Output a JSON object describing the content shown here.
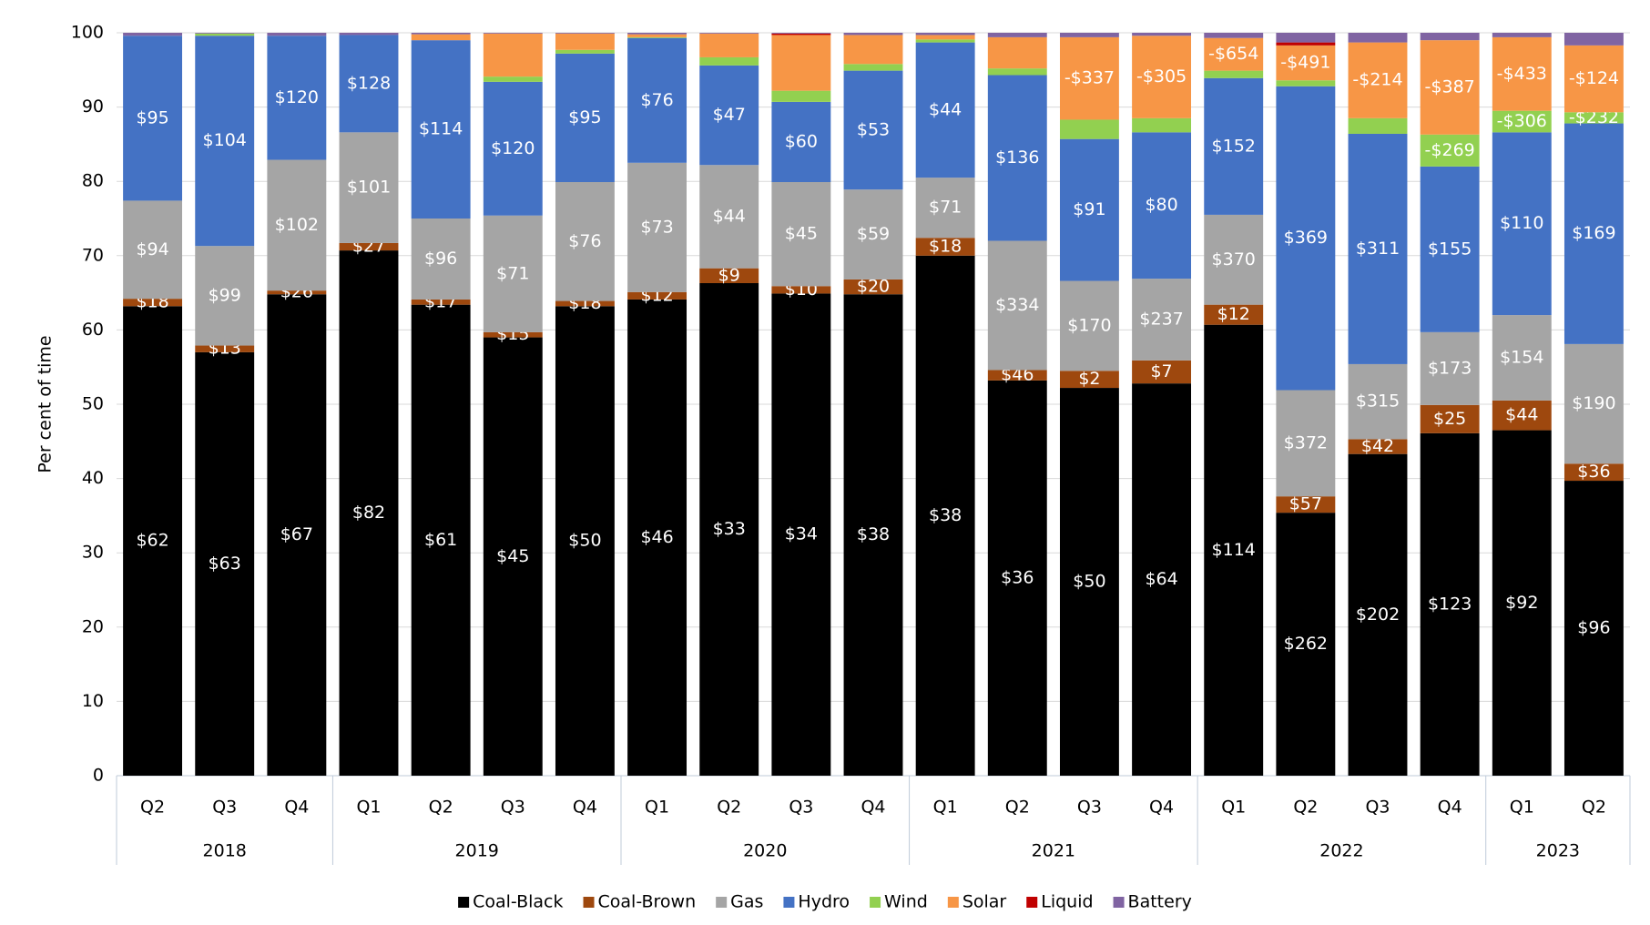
{
  "chart_data": {
    "type": "stacked_bar",
    "y_label": "Per cent of time",
    "categories": [
      "Q2",
      "Q3",
      "Q4",
      "Q1",
      "Q2",
      "Q3",
      "Q4",
      "Q1",
      "Q2",
      "Q3",
      "Q4",
      "Q1",
      "Q2",
      "Q3",
      "Q4",
      "Q1",
      "Q2",
      "Q3",
      "Q4",
      "Q1",
      "Q2"
    ],
    "years": [
      "2018",
      null,
      null,
      "2019",
      null,
      null,
      null,
      "2020",
      null,
      null,
      null,
      "2021",
      null,
      null,
      null,
      "2022",
      null,
      null,
      null,
      "2023",
      null
    ],
    "ylim": [
      0,
      100
    ],
    "yticks": [
      0,
      10,
      20,
      30,
      40,
      50,
      60,
      70,
      80,
      90,
      100
    ],
    "grid": true,
    "legend": "bottom",
    "series": [
      {
        "name": "Coal-Black",
        "color": "#000000",
        "values": [
          63.2,
          57.0,
          64.8,
          70.7,
          63.4,
          59.0,
          63.2,
          64.1,
          66.3,
          64.9,
          64.8,
          70.0,
          53.2,
          52.2,
          52.8,
          60.7,
          35.4,
          43.3,
          46.1,
          46.5,
          39.7
        ],
        "labels": [
          "$62",
          "$63",
          "$67",
          "$82",
          "$61",
          "$45",
          "$50",
          "$46",
          "$33",
          "$34",
          "$38",
          "$38",
          "$36",
          "$50",
          "$64",
          "$114",
          "$262",
          "$202",
          "$123",
          "$92",
          "$96"
        ]
      },
      {
        "name": "Coal-Brown",
        "color": "#9e480e",
        "values": [
          1.0,
          0.9,
          0.5,
          1.0,
          0.7,
          0.7,
          0.7,
          1.0,
          2.0,
          1.0,
          2.0,
          2.4,
          1.4,
          2.3,
          3.1,
          2.7,
          2.2,
          2.0,
          3.8,
          4.0,
          2.3
        ],
        "labels": [
          "$18",
          "$13",
          "$26",
          "$27",
          "$17",
          "$15",
          "$18",
          "$12",
          "$9",
          "$10",
          "$20",
          "$18",
          "$46",
          "$2",
          "$7",
          "$12",
          "$57",
          "$42",
          "$25",
          "$44",
          "$36"
        ]
      },
      {
        "name": "Gas",
        "color": "#a5a5a5",
        "values": [
          13.2,
          13.4,
          17.6,
          14.9,
          10.9,
          15.7,
          16.0,
          17.4,
          13.9,
          14.0,
          12.1,
          8.1,
          17.4,
          12.1,
          11.0,
          12.1,
          14.3,
          10.1,
          9.8,
          11.5,
          16.1
        ],
        "labels": [
          "$94",
          "$99",
          "$102",
          "$101",
          "$96",
          "$71",
          "$76",
          "$73",
          "$44",
          "$45",
          "$59",
          "$71",
          "$334",
          "$170",
          "$237",
          "$370",
          "$372",
          "$315",
          "$173",
          "$154",
          "$190"
        ]
      },
      {
        "name": "Hydro",
        "color": "#4472c4",
        "values": [
          22.2,
          28.3,
          16.7,
          13.1,
          24.0,
          18.0,
          17.3,
          16.8,
          13.4,
          10.8,
          16.0,
          18.2,
          22.3,
          19.1,
          19.7,
          18.4,
          40.9,
          31.0,
          22.3,
          24.6,
          29.7
        ],
        "labels": [
          "$95",
          "$104",
          "$120",
          "$128",
          "$114",
          "$120",
          "$95",
          "$76",
          "$47",
          "$60",
          "$53",
          "$44",
          "$136",
          "$91",
          "$80",
          "$152",
          "$369",
          "$311",
          "$155",
          "$110",
          "$169"
        ]
      },
      {
        "name": "Wind",
        "color": "#92d050",
        "values": [
          0,
          0.3,
          0,
          0,
          0,
          0.7,
          0.5,
          0.1,
          1.1,
          1.5,
          0.9,
          0.4,
          0.9,
          2.6,
          1.9,
          1.0,
          0.8,
          2.1,
          4.3,
          2.9,
          1.5
        ],
        "labels": [
          null,
          null,
          null,
          null,
          null,
          null,
          null,
          null,
          null,
          null,
          null,
          null,
          null,
          null,
          null,
          null,
          null,
          null,
          "-$269",
          "-$306",
          "-$232"
        ]
      },
      {
        "name": "Solar",
        "color": "#f79646",
        "values": [
          0,
          0,
          0,
          0,
          0.8,
          5.8,
          2.2,
          0.4,
          3.2,
          7.5,
          3.9,
          0.6,
          4.2,
          11.1,
          11.1,
          4.4,
          4.7,
          10.2,
          12.7,
          9.9,
          9.0
        ],
        "labels": [
          null,
          null,
          null,
          null,
          null,
          null,
          null,
          null,
          null,
          null,
          null,
          null,
          null,
          "-$337",
          "-$305",
          "-$654",
          "-$491",
          "-$214",
          "-$387",
          "-$433",
          "-$124"
        ]
      },
      {
        "name": "Liquid",
        "color": "#c00000",
        "values": [
          0,
          0,
          0,
          0,
          0,
          0,
          0,
          0,
          0,
          0.2,
          0,
          0,
          0,
          0,
          0,
          0,
          0.4,
          0,
          0,
          0,
          0
        ]
      },
      {
        "name": "Battery",
        "color": "#8064a2",
        "values": [
          0.4,
          0.1,
          0.4,
          0.3,
          0.2,
          0.1,
          0.1,
          0.2,
          0.1,
          0.1,
          0.3,
          0.3,
          0.6,
          0.6,
          0.4,
          0.7,
          1.3,
          1.3,
          1.0,
          0.6,
          1.7
        ]
      }
    ]
  }
}
